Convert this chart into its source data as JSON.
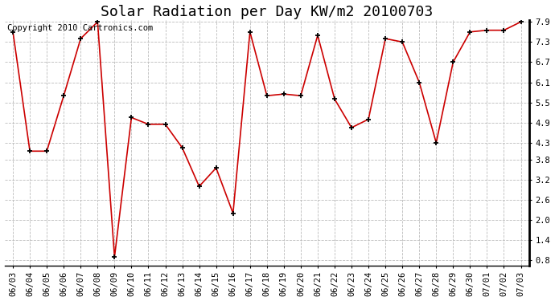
{
  "title": "Solar Radiation per Day KW/m2 20100703",
  "copyright": "Copyright 2010 Cartronics.com",
  "dates": [
    "06/03",
    "06/04",
    "06/05",
    "06/06",
    "06/07",
    "06/08",
    "06/09",
    "06/10",
    "06/11",
    "06/12",
    "06/13",
    "06/14",
    "06/15",
    "06/16",
    "06/17",
    "06/18",
    "06/19",
    "06/20",
    "06/21",
    "06/22",
    "06/23",
    "06/24",
    "06/25",
    "06/26",
    "06/27",
    "06/28",
    "06/29",
    "06/30",
    "07/01",
    "07/02",
    "07/03"
  ],
  "values": [
    7.6,
    4.05,
    4.05,
    5.7,
    7.4,
    7.9,
    0.9,
    5.05,
    4.85,
    4.85,
    4.15,
    3.0,
    3.55,
    2.2,
    7.6,
    5.7,
    5.75,
    5.7,
    7.5,
    5.6,
    4.75,
    5.0,
    7.4,
    7.3,
    6.1,
    4.3,
    6.7,
    7.6,
    7.65,
    7.65,
    7.9
  ],
  "line_color": "#cc0000",
  "marker_color": "#000000",
  "bg_color": "#ffffff",
  "grid_color": "#bbbbbb",
  "ylim_min": 0.8,
  "ylim_max": 7.9,
  "yticks": [
    0.8,
    1.4,
    2.0,
    2.6,
    3.2,
    3.8,
    4.3,
    4.9,
    5.5,
    6.1,
    6.7,
    7.3,
    7.9
  ],
  "title_fontsize": 13,
  "label_fontsize": 7.5,
  "copyright_fontsize": 7.5
}
